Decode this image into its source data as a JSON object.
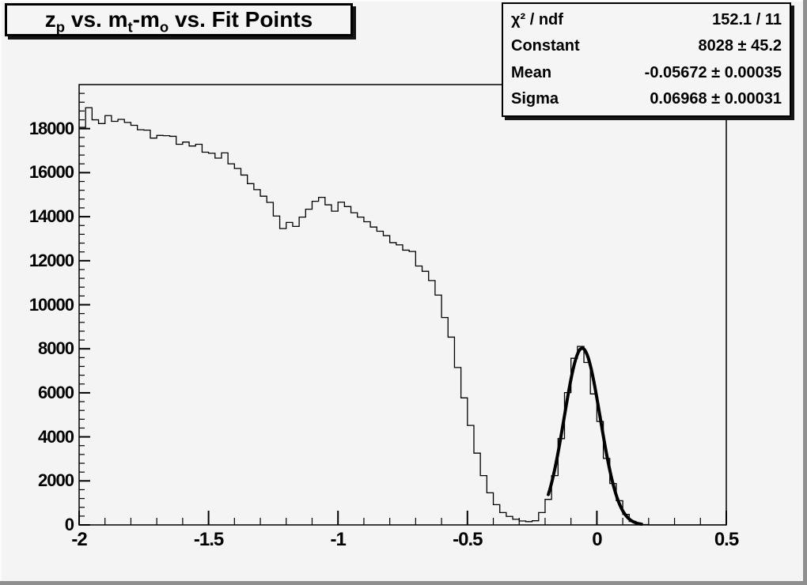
{
  "title": {
    "text": "z_p vs. m_t-m_o vs. Fit Points",
    "parts": [
      {
        "text": "z"
      },
      {
        "sub": "p"
      },
      {
        "text": " vs. m"
      },
      {
        "sub": "t"
      },
      {
        "text": "-m"
      },
      {
        "sub": "o"
      },
      {
        "text": " vs. Fit Points"
      }
    ]
  },
  "stats_box": {
    "rows": [
      {
        "label": "χ² / ndf",
        "value": "152.1 / 11"
      },
      {
        "label": "Constant",
        "value": "8028 ± 45.2"
      },
      {
        "label": "Mean",
        "value": "-0.05672 ± 0.00035"
      },
      {
        "label": "Sigma",
        "value": "0.06968 ± 0.00031"
      }
    ]
  },
  "colors": {
    "canvas_bg": "#f4f4f4",
    "box_bg": "#f5f5f5",
    "line": "#000000",
    "text": "#000000",
    "border_shade": "#8f8f8f",
    "border_highlight": "#fcfcfc",
    "box_shadow": "#141414"
  },
  "chart_data": {
    "type": "bar",
    "subtype": "step-histogram",
    "title": "z_p vs. m_t-m_o vs. Fit Points",
    "xlabel": "",
    "ylabel": "",
    "xlim": [
      -2,
      0.5
    ],
    "ylim": [
      0,
      20000
    ],
    "grid": false,
    "legend_position": "none",
    "bins": {
      "start": -2.0,
      "width": 0.025,
      "count": 100
    },
    "values": [
      18060,
      18950,
      18400,
      18230,
      18590,
      18330,
      18420,
      18280,
      18150,
      17950,
      17930,
      17570,
      17690,
      17680,
      17650,
      17290,
      17390,
      17210,
      17290,
      16930,
      16880,
      16660,
      16900,
      16400,
      16190,
      15890,
      15500,
      15230,
      14930,
      14650,
      14030,
      13460,
      13740,
      13560,
      13980,
      14340,
      14700,
      14880,
      14540,
      14250,
      14660,
      14460,
      14180,
      13980,
      13770,
      13530,
      13340,
      13140,
      12820,
      12720,
      12480,
      12420,
      11760,
      11520,
      11100,
      10440,
      9420,
      8530,
      7150,
      5770,
      4520,
      3260,
      2240,
      1460,
      920,
      560,
      385,
      255,
      180,
      150,
      190,
      560,
      1160,
      2240,
      3920,
      6010,
      7570,
      8110,
      7380,
      5950,
      4700,
      3020,
      1880,
      1100,
      480,
      160,
      55,
      15,
      0,
      0,
      0,
      0,
      0,
      0,
      0,
      0,
      0,
      0,
      0,
      0
    ],
    "x_ticks": {
      "labels": [
        "-2",
        "-1.5",
        "-1",
        "-0.5",
        "0",
        "0.5"
      ],
      "values": [
        -2,
        -1.5,
        -1,
        -0.5,
        0,
        0.5
      ],
      "minor_step": 0.1
    },
    "y_ticks": {
      "labels": [
        "0",
        "2000",
        "4000",
        "6000",
        "8000",
        "10000",
        "12000",
        "14000",
        "16000",
        "18000"
      ],
      "values": [
        0,
        2000,
        4000,
        6000,
        8000,
        10000,
        12000,
        14000,
        16000,
        18000
      ],
      "minor_step": 400
    },
    "fit": {
      "model": "gaussian",
      "chi2": 152.1,
      "ndf": 11,
      "constant": 8028,
      "constant_err": 45.2,
      "mean": -0.05672,
      "mean_err": 0.00035,
      "sigma": 0.06968,
      "sigma_err": 0.00031,
      "draw_range": [
        -0.1875,
        0.175
      ]
    }
  }
}
